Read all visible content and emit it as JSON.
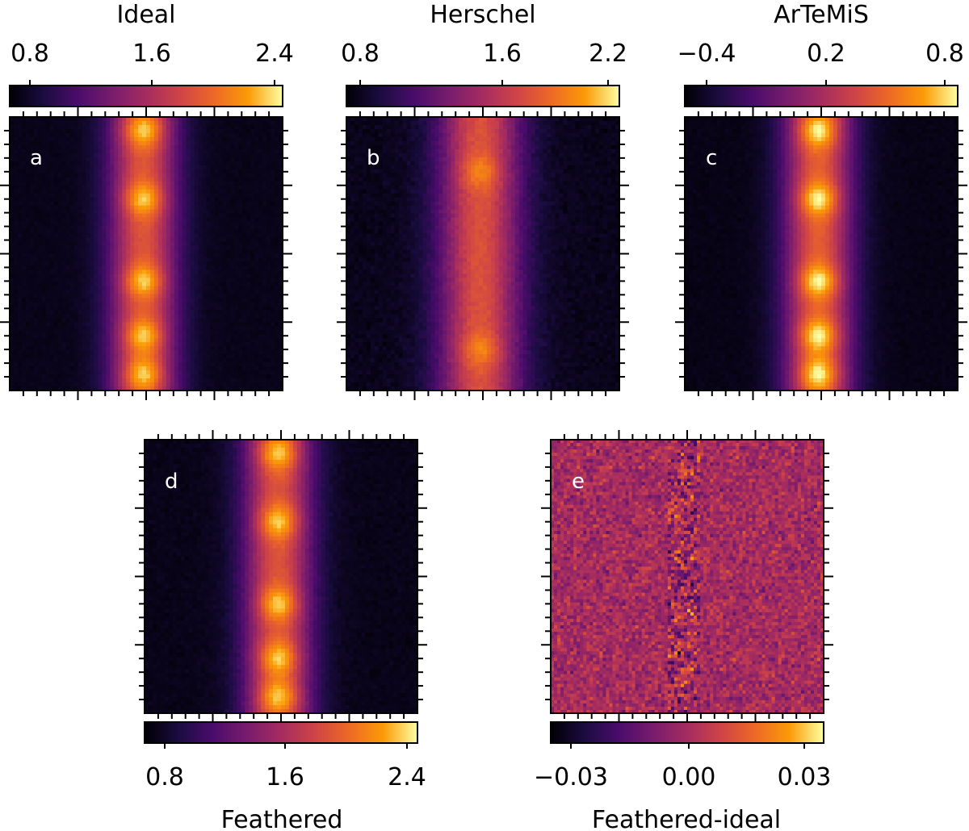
{
  "chart_data": [
    {
      "type": "heatmap",
      "panel_label": "a",
      "title": "Ideal",
      "colorbar": {
        "position": "top",
        "ticks": [
          "0.8",
          "1.6",
          "2.4"
        ],
        "tick_values": [
          0.8,
          1.6,
          2.4
        ],
        "range": [
          0.7,
          2.55
        ]
      },
      "profile": {
        "background": 0.78,
        "ridge_peak": 1.95,
        "ridge_center": 0.49,
        "ridge_width": 0.16,
        "cores": [
          0.05,
          0.3,
          0.6,
          0.8,
          0.94
        ],
        "core_peak": 2.45,
        "noise": 0.015
      }
    },
    {
      "type": "heatmap",
      "panel_label": "b",
      "title": "Herschel",
      "colorbar": {
        "position": "top",
        "ticks": [
          "0.8",
          "1.6",
          "2.2"
        ],
        "tick_values": [
          0.8,
          1.6,
          2.2
        ],
        "range": [
          0.7,
          2.35
        ]
      },
      "profile": {
        "background": 0.78,
        "ridge_peak": 1.8,
        "ridge_center": 0.49,
        "ridge_width": 0.19,
        "cores": [
          0.2,
          0.85
        ],
        "core_peak": 2.05,
        "noise": 0.03
      }
    },
    {
      "type": "heatmap",
      "panel_label": "c",
      "title": "ArTeMiS",
      "colorbar": {
        "position": "top",
        "ticks": [
          "−0.4",
          "0.2",
          "0.8"
        ],
        "tick_values": [
          -0.4,
          0.2,
          0.8
        ],
        "range": [
          -0.5,
          0.85
        ]
      },
      "profile": {
        "background": -0.45,
        "ridge_peak": 0.45,
        "ridge_center": 0.49,
        "ridge_width": 0.16,
        "cores": [
          0.05,
          0.3,
          0.6,
          0.8,
          0.94
        ],
        "core_peak": 0.85,
        "noise": 0.015
      }
    },
    {
      "type": "heatmap",
      "panel_label": "d",
      "title": "Feathered",
      "colorbar": {
        "position": "bottom",
        "ticks": [
          "0.8",
          "1.6",
          "2.4"
        ],
        "tick_values": [
          0.8,
          1.6,
          2.4
        ],
        "range": [
          0.7,
          2.55
        ]
      },
      "profile": {
        "background": 0.78,
        "ridge_peak": 1.95,
        "ridge_center": 0.49,
        "ridge_width": 0.16,
        "cores": [
          0.05,
          0.3,
          0.6,
          0.8,
          0.94
        ],
        "core_peak": 2.45,
        "noise": 0.02
      }
    },
    {
      "type": "heatmap",
      "panel_label": "e",
      "title": "Feathered-ideal",
      "colorbar": {
        "position": "bottom",
        "ticks": [
          "−0.03",
          "0.00",
          "0.03"
        ],
        "tick_values": [
          -0.03,
          0.0,
          0.03
        ],
        "range": [
          -0.035,
          0.035
        ]
      },
      "profile": {
        "residual": true,
        "scatter": 0.01,
        "center_scatter": 0.02,
        "ridge_center": 0.49
      }
    }
  ]
}
